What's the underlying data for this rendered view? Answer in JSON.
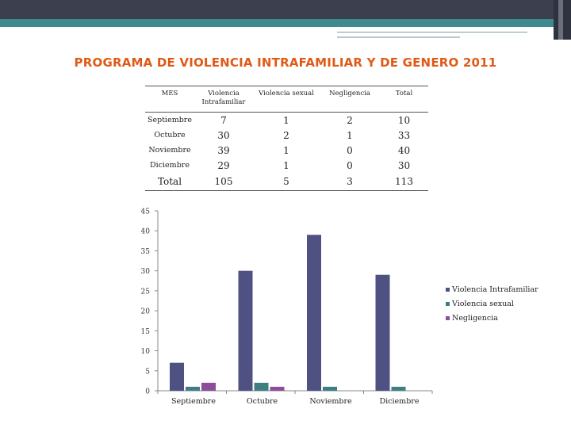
{
  "title": "PROGRAMA DE VIOLENCIA INTRAFAMILIAR Y DE GENERO 2011",
  "table": {
    "headers": [
      "MES",
      "Violencia Intrafamiliar",
      "Violencia sexual",
      "Negligencia",
      "Total"
    ],
    "rows": [
      {
        "mes": "Septiembre",
        "vi": "7",
        "vs": "1",
        "neg": "2",
        "total": "10"
      },
      {
        "mes": "Octubre",
        "vi": "30",
        "vs": "2",
        "neg": "1",
        "total": "33"
      },
      {
        "mes": "Noviembre",
        "vi": "39",
        "vs": "1",
        "neg": "0",
        "total": "40"
      },
      {
        "mes": "Diciembre",
        "vi": "29",
        "vs": "1",
        "neg": "0",
        "total": "30"
      },
      {
        "mes": "Total",
        "vi": "105",
        "vs": "5",
        "neg": "3",
        "total": "113"
      }
    ]
  },
  "chart_data": {
    "type": "bar",
    "categories": [
      "Septiembre",
      "Octubre",
      "Noviembre",
      "Diciembre"
    ],
    "series": [
      {
        "name": "Violencia Intrafamiliar",
        "values": [
          7,
          30,
          39,
          29
        ],
        "color": "#4f5183"
      },
      {
        "name": "Violencia sexual",
        "values": [
          1,
          2,
          1,
          1
        ],
        "color": "#3f7f83"
      },
      {
        "name": "Negligencia",
        "values": [
          2,
          1,
          0,
          0
        ],
        "color": "#8e4d9a"
      }
    ],
    "ylim": [
      0,
      45
    ],
    "yticks": [
      "0",
      "5",
      "10",
      "15",
      "20",
      "25",
      "30",
      "35",
      "40",
      "45"
    ],
    "xlabel": "",
    "ylabel": "",
    "grid": false,
    "legend": "right"
  },
  "colors": {
    "title": "#e05a16",
    "topbar": "#3b3f4e",
    "accent": "#3f8a8c"
  }
}
